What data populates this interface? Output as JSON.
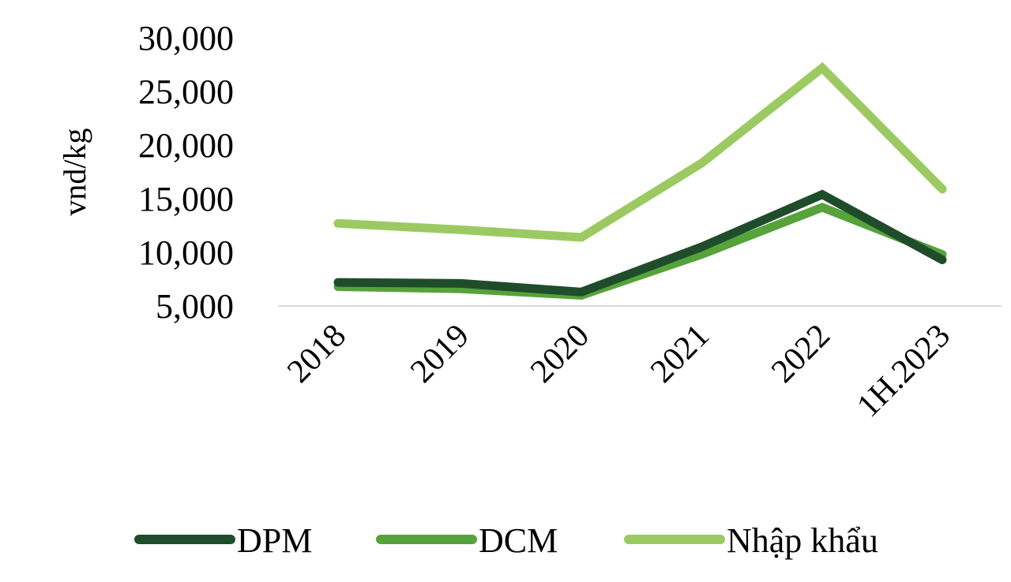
{
  "chart_data": {
    "type": "line",
    "title": "",
    "xlabel": "",
    "ylabel": "vnd/kg",
    "categories": [
      "2018",
      "2019",
      "2020",
      "2021",
      "2022",
      "1H.2023"
    ],
    "y_ticks": [
      "5,000",
      "10,000",
      "15,000",
      "20,000",
      "25,000",
      "30,000"
    ],
    "ylim": [
      5000,
      30000
    ],
    "grid": false,
    "legend_position": "bottom",
    "series": [
      {
        "name": "DPM",
        "color": "#1f4d2b",
        "values": [
          7200,
          7100,
          6300,
          10500,
          15400,
          9300
        ]
      },
      {
        "name": "DCM",
        "color": "#56a23b",
        "values": [
          6800,
          6600,
          6000,
          9800,
          14200,
          9800
        ]
      },
      {
        "name": "Nhập khẩu",
        "color": "#9cca62",
        "values": [
          12700,
          12100,
          11400,
          18300,
          27200,
          15900
        ]
      }
    ]
  }
}
